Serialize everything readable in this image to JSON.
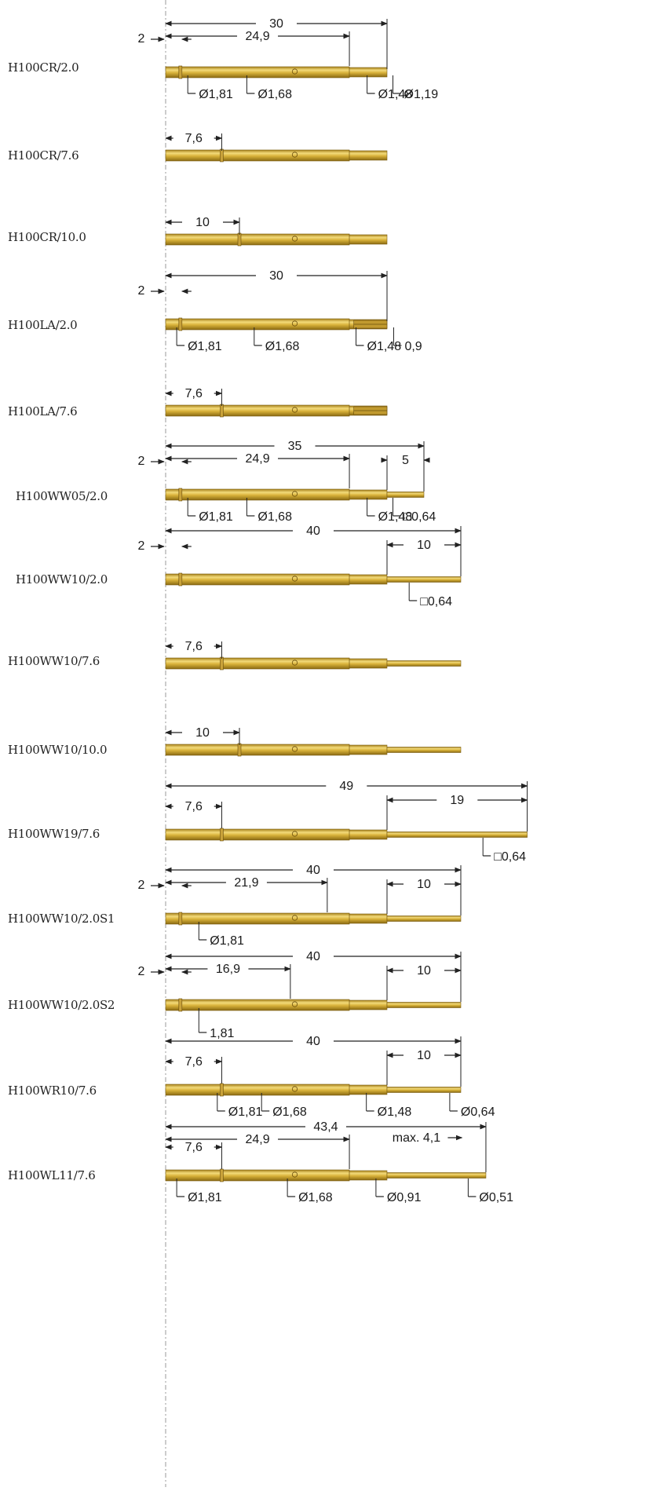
{
  "colors": {
    "pin_fill": "#d9b23a",
    "pin_highlight": "#f2da7a",
    "pin_edge": "#8a6a12",
    "dim_line": "#222222",
    "datum_line": "#9a9a9a"
  },
  "pins": [
    {
      "name": "H100CR/2.0",
      "total_len": "30",
      "sub_len": "24,9",
      "offset": "2",
      "diams": [
        "Ø1,81",
        "Ø1,68",
        "Ø1,48",
        "Ø1,19"
      ]
    },
    {
      "name": "H100CR/7.6",
      "offset": "7,6"
    },
    {
      "name": "H100CR/10.0",
      "offset": "10"
    },
    {
      "name": "H100LA/2.0",
      "total_len": "30",
      "offset": "2",
      "diams": [
        "Ø1,81",
        "Ø1,68",
        "Ø1,48",
        "0,9"
      ]
    },
    {
      "name": "H100LA/7.6",
      "offset": "7,6"
    },
    {
      "name": "H100WW05/2.0",
      "total_len": "35",
      "sub_len": "24,9",
      "offset": "2",
      "tail_len": "5",
      "diams": [
        "Ø1,81",
        "Ø1,68",
        "Ø1,48",
        "□0,64"
      ]
    },
    {
      "name": "H100WW10/2.0",
      "total_len": "40",
      "offset": "2",
      "tail_len": "10",
      "diams": [
        "□0,64"
      ]
    },
    {
      "name": "H100WW10/7.6",
      "offset": "7,6"
    },
    {
      "name": "H100WW10/10.0",
      "offset": "10"
    },
    {
      "name": "H100WW19/7.6",
      "total_len": "49",
      "offset": "7,6",
      "tail_len": "19",
      "diams": [
        "□0,64"
      ]
    },
    {
      "name": "H100WW10/2.0S1",
      "total_len": "40",
      "sub_len": "21,9",
      "offset": "2",
      "tail_len": "10",
      "diams": [
        "Ø1,81"
      ]
    },
    {
      "name": "H100WW10/2.0S2",
      "total_len": "40",
      "sub_len": "16,9",
      "offset": "2",
      "tail_len": "10",
      "diams": [
        "1,81"
      ]
    },
    {
      "name": "H100WR10/7.6",
      "total_len": "40",
      "offset": "7,6",
      "tail_len": "10",
      "diams": [
        "Ø1,81",
        "Ø1,68",
        "Ø1,48",
        "Ø0,64"
      ]
    },
    {
      "name": "H100WL11/7.6",
      "total_len": "43,4",
      "sub_len": "24,9",
      "offset": "7,6",
      "tail_len": "max. 4,1",
      "diams": [
        "Ø1,81",
        "Ø1,68",
        "Ø0,91",
        "Ø0,51"
      ]
    }
  ]
}
